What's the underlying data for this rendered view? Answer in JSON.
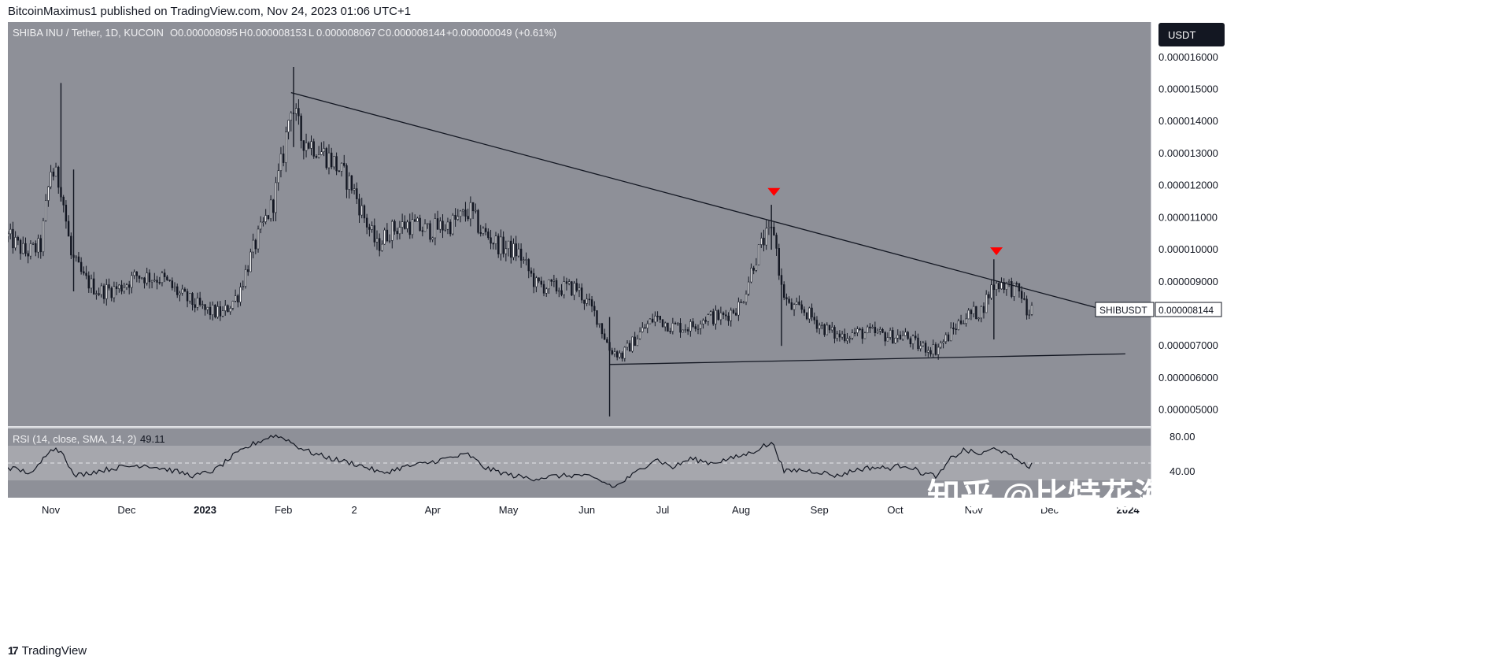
{
  "header": {
    "publisher_line": "BitcoinMaximus1 published on TradingView.com, Nov 24, 2023 01:06 UTC+1"
  },
  "footer": {
    "brand": "TradingView",
    "logo_glyph": "17"
  },
  "watermark": "知乎 @比特花海",
  "legend": {
    "symbol_line": "SHIBA INU / Tether, 1D, KUCOIN",
    "ohlc": [
      {
        "k": "O",
        "v": "0.000008095"
      },
      {
        "k": "H",
        "v": "0.000008153"
      },
      {
        "k": "L",
        "v": "0.000008067"
      },
      {
        "k": "C",
        "v": "0.000008144"
      }
    ],
    "change": "+0.000000049 (+0.61%)"
  },
  "currency_badge": "USDT",
  "price_label": {
    "symbol": "SHIBUSDT",
    "value": "0.000008144"
  },
  "colors": {
    "background": "#8e9098",
    "axis_bg": "#ffffff",
    "candle": "#131722",
    "marker": "#ff0000",
    "rsi_band": "#a6a7ad"
  },
  "chart_data": [
    {
      "type": "candlestick",
      "title": "SHIBA INU / Tether, 1D, KUCOIN",
      "x_ticks": [
        "Nov",
        "Dec",
        "2023",
        "Feb",
        "2",
        "Apr",
        "May",
        "Jun",
        "Jul",
        "Aug",
        "Sep",
        "Oct",
        "Nov",
        "Dec",
        "2024"
      ],
      "y_ticks": [
        "0.000016000",
        "0.000015000",
        "0.000014000",
        "0.000013000",
        "0.000012000",
        "0.000011000",
        "0.000010000",
        "0.000009000",
        "0.000008000",
        "0.000007000",
        "0.000006000",
        "0.000005000"
      ],
      "ylim": [
        4.5e-06,
        1.71e-05
      ],
      "y_scale": "linear",
      "grid": false,
      "price_path": [
        [
          "2022-10-15",
          1.04e-05
        ],
        [
          "2022-10-22",
          9.9e-06
        ],
        [
          "2022-10-28",
          1.01e-05
        ],
        [
          "2022-11-01",
          1.25e-05
        ],
        [
          "2022-11-05",
          1.2e-05
        ],
        [
          "2022-11-09",
          9.8e-06
        ],
        [
          "2022-11-14",
          9.1e-06
        ],
        [
          "2022-11-20",
          8.7e-06
        ],
        [
          "2022-11-28",
          8.8e-06
        ],
        [
          "2022-12-05",
          9.2e-06
        ],
        [
          "2022-12-15",
          9.1e-06
        ],
        [
          "2022-12-22",
          8.6e-06
        ],
        [
          "2023-01-01",
          8.1e-06
        ],
        [
          "2023-01-08",
          8e-06
        ],
        [
          "2023-01-14",
          8.6e-06
        ],
        [
          "2023-01-20",
          1e-05
        ],
        [
          "2023-01-28",
          1.15e-05
        ],
        [
          "2023-02-01",
          1.3e-05
        ],
        [
          "2023-02-04",
          1.46e-05
        ],
        [
          "2023-02-08",
          1.35e-05
        ],
        [
          "2023-02-14",
          1.32e-05
        ],
        [
          "2023-02-20",
          1.28e-05
        ],
        [
          "2023-02-28",
          1.2e-05
        ],
        [
          "2023-03-05",
          1.1e-05
        ],
        [
          "2023-03-10",
          1.01e-05
        ],
        [
          "2023-03-15",
          1.06e-05
        ],
        [
          "2023-03-22",
          1.08e-05
        ],
        [
          "2023-03-30",
          1.06e-05
        ],
        [
          "2023-04-08",
          1.08e-05
        ],
        [
          "2023-04-16",
          1.12e-05
        ],
        [
          "2023-04-20",
          1.06e-05
        ],
        [
          "2023-04-28",
          1.01e-05
        ],
        [
          "2023-05-05",
          9.9e-06
        ],
        [
          "2023-05-12",
          8.9e-06
        ],
        [
          "2023-05-20",
          8.8e-06
        ],
        [
          "2023-05-28",
          8.8e-06
        ],
        [
          "2023-06-05",
          7.9e-06
        ],
        [
          "2023-06-10",
          6.9e-06
        ],
        [
          "2023-06-15",
          6.7e-06
        ],
        [
          "2023-06-22",
          7.4e-06
        ],
        [
          "2023-06-28",
          7.9e-06
        ],
        [
          "2023-07-05",
          7.6e-06
        ],
        [
          "2023-07-12",
          7.6e-06
        ],
        [
          "2023-07-18",
          7.9e-06
        ],
        [
          "2023-07-25",
          7.9e-06
        ],
        [
          "2023-08-01",
          8.3e-06
        ],
        [
          "2023-08-06",
          9.6e-06
        ],
        [
          "2023-08-10",
          1.03e-05
        ],
        [
          "2023-08-14",
          1.06e-05
        ],
        [
          "2023-08-17",
          8.8e-06
        ],
        [
          "2023-08-20",
          8.2e-06
        ],
        [
          "2023-08-26",
          8.1e-06
        ],
        [
          "2023-09-02",
          7.6e-06
        ],
        [
          "2023-09-08",
          7.3e-06
        ],
        [
          "2023-09-15",
          7.4e-06
        ],
        [
          "2023-09-22",
          7.4e-06
        ],
        [
          "2023-09-29",
          7.3e-06
        ],
        [
          "2023-10-05",
          7.3e-06
        ],
        [
          "2023-10-10",
          7e-06
        ],
        [
          "2023-10-17",
          6.9e-06
        ],
        [
          "2023-10-22",
          7.3e-06
        ],
        [
          "2023-10-28",
          7.9e-06
        ],
        [
          "2023-11-04",
          8.1e-06
        ],
        [
          "2023-11-08",
          8.8e-06
        ],
        [
          "2023-11-12",
          9e-06
        ],
        [
          "2023-11-16",
          8.8e-06
        ],
        [
          "2023-11-20",
          8.6e-06
        ],
        [
          "2023-11-22",
          8e-06
        ],
        [
          "2023-11-24",
          8.14e-06
        ]
      ],
      "spikes": [
        {
          "date": "2022-11-05",
          "high": 1.52e-05,
          "low": 1.15e-05
        },
        {
          "date": "2022-11-10",
          "high": 1.25e-05,
          "low": 8.7e-06
        },
        {
          "date": "2023-02-05",
          "high": 1.57e-05,
          "low": 1.32e-05
        },
        {
          "date": "2023-06-10",
          "high": 7.9e-06,
          "low": 4.8e-06
        },
        {
          "date": "2023-08-13",
          "high": 1.14e-05,
          "low": 1e-05
        },
        {
          "date": "2023-08-17",
          "high": 8.9e-06,
          "low": 7e-06
        },
        {
          "date": "2023-11-09",
          "high": 9.7e-06,
          "low": 7.2e-06
        }
      ],
      "trendlines": [
        {
          "name": "descending resistance",
          "start": [
            "2023-02-04",
            1.49e-05
          ],
          "end": [
            "2023-12-31",
            7.95e-06
          ]
        },
        {
          "name": "horizontal support",
          "start": [
            "2023-06-10",
            6.42e-06
          ],
          "end": [
            "2023-12-31",
            6.75e-06
          ]
        }
      ],
      "markers": [
        {
          "shape": "down-triangle",
          "date": "2023-08-14",
          "value": 1.18e-05
        },
        {
          "shape": "down-triangle",
          "date": "2023-11-10",
          "value": 9.95e-06
        }
      ]
    },
    {
      "type": "line",
      "title": "RSI (14, close, SMA, 14, 2)",
      "last_value": "49.11",
      "y_ticks": [
        "80.00",
        "40.00"
      ],
      "ylim": [
        10,
        90
      ],
      "band": [
        30,
        70
      ],
      "midline": 50,
      "series": [
        {
          "values": [
            [
              "2022-10-15",
              45
            ],
            [
              "2022-10-25",
              38
            ],
            [
              "2022-11-01",
              68
            ],
            [
              "2022-11-06",
              62
            ],
            [
              "2022-11-10",
              35
            ],
            [
              "2022-11-18",
              40
            ],
            [
              "2022-11-28",
              45
            ],
            [
              "2022-12-08",
              48
            ],
            [
              "2022-12-18",
              42
            ],
            [
              "2022-12-28",
              35
            ],
            [
              "2023-01-05",
              42
            ],
            [
              "2023-01-12",
              58
            ],
            [
              "2023-01-20",
              72
            ],
            [
              "2023-01-28",
              82
            ],
            [
              "2023-02-02",
              78
            ],
            [
              "2023-02-06",
              70
            ],
            [
              "2023-02-12",
              62
            ],
            [
              "2023-02-20",
              55
            ],
            [
              "2023-02-28",
              50
            ],
            [
              "2023-03-06",
              45
            ],
            [
              "2023-03-12",
              38
            ],
            [
              "2023-03-20",
              45
            ],
            [
              "2023-03-30",
              50
            ],
            [
              "2023-04-06",
              55
            ],
            [
              "2023-04-15",
              60
            ],
            [
              "2023-04-22",
              44
            ],
            [
              "2023-05-02",
              36
            ],
            [
              "2023-05-10",
              32
            ],
            [
              "2023-05-20",
              35
            ],
            [
              "2023-05-30",
              36
            ],
            [
              "2023-06-06",
              30
            ],
            [
              "2023-06-12",
              22
            ],
            [
              "2023-06-20",
              38
            ],
            [
              "2023-06-28",
              55
            ],
            [
              "2023-07-05",
              45
            ],
            [
              "2023-07-12",
              55
            ],
            [
              "2023-07-20",
              50
            ],
            [
              "2023-07-28",
              55
            ],
            [
              "2023-08-05",
              62
            ],
            [
              "2023-08-10",
              70
            ],
            [
              "2023-08-14",
              72
            ],
            [
              "2023-08-18",
              40
            ],
            [
              "2023-08-24",
              42
            ],
            [
              "2023-09-01",
              40
            ],
            [
              "2023-09-08",
              35
            ],
            [
              "2023-09-15",
              42
            ],
            [
              "2023-09-22",
              45
            ],
            [
              "2023-09-28",
              44
            ],
            [
              "2023-10-05",
              48
            ],
            [
              "2023-10-12",
              38
            ],
            [
              "2023-10-18",
              35
            ],
            [
              "2023-10-23",
              55
            ],
            [
              "2023-10-28",
              65
            ],
            [
              "2023-11-04",
              60
            ],
            [
              "2023-11-10",
              68
            ],
            [
              "2023-11-14",
              60
            ],
            [
              "2023-11-20",
              52
            ],
            [
              "2023-11-22",
              44
            ],
            [
              "2023-11-24",
              49
            ]
          ]
        }
      ]
    }
  ]
}
